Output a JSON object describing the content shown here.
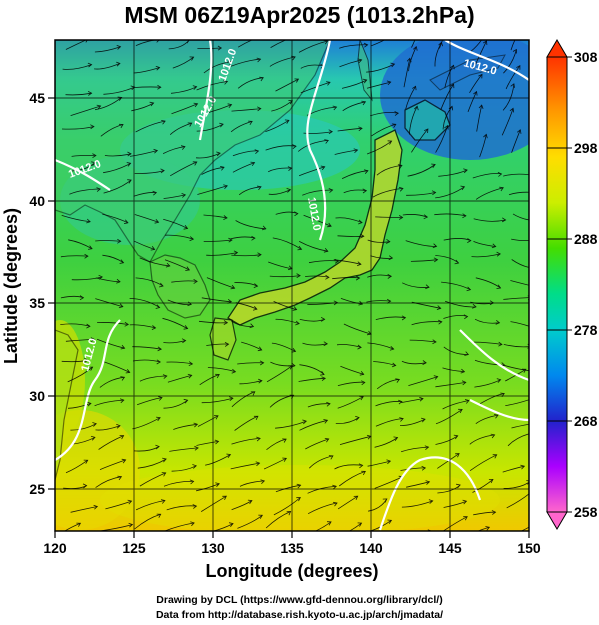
{
  "title": "MSM 06Z19Apr2025 (1013.2hPa)",
  "map": {
    "lon_range": [
      120,
      150
    ],
    "lat_range": [
      22.4,
      47.6
    ],
    "x_ticks": [
      "120",
      "125",
      "130",
      "135",
      "140",
      "145",
      "150"
    ],
    "y_ticks": [
      "25",
      "30",
      "35",
      "40",
      "45"
    ],
    "xlabel": "Longitude (degrees)",
    "ylabel": "Latitude  (degrees)",
    "contour_labels": [
      "1012.0",
      "1012.0",
      "1012.0",
      "1012.0",
      "1012.0",
      "1012.0"
    ],
    "field_palette": [
      "#ff3300",
      "#ff9900",
      "#ffcc00",
      "#eeee00",
      "#aaee00",
      "#44dd00",
      "#00dd88",
      "#00cccc",
      "#0088ee",
      "#2222cc",
      "#aa00ff",
      "#ff66cc"
    ]
  },
  "colorbar": {
    "labels": [
      "308",
      "298",
      "288",
      "278",
      "268",
      "258"
    ],
    "min": 258,
    "max": 308
  },
  "credits": {
    "line1": "Drawing by DCL (https://www.gfd-dennou.org/library/dcl/)",
    "line2": "Data from http://database.rish.kyoto-u.ac.jp/arch/jmadata/"
  }
}
